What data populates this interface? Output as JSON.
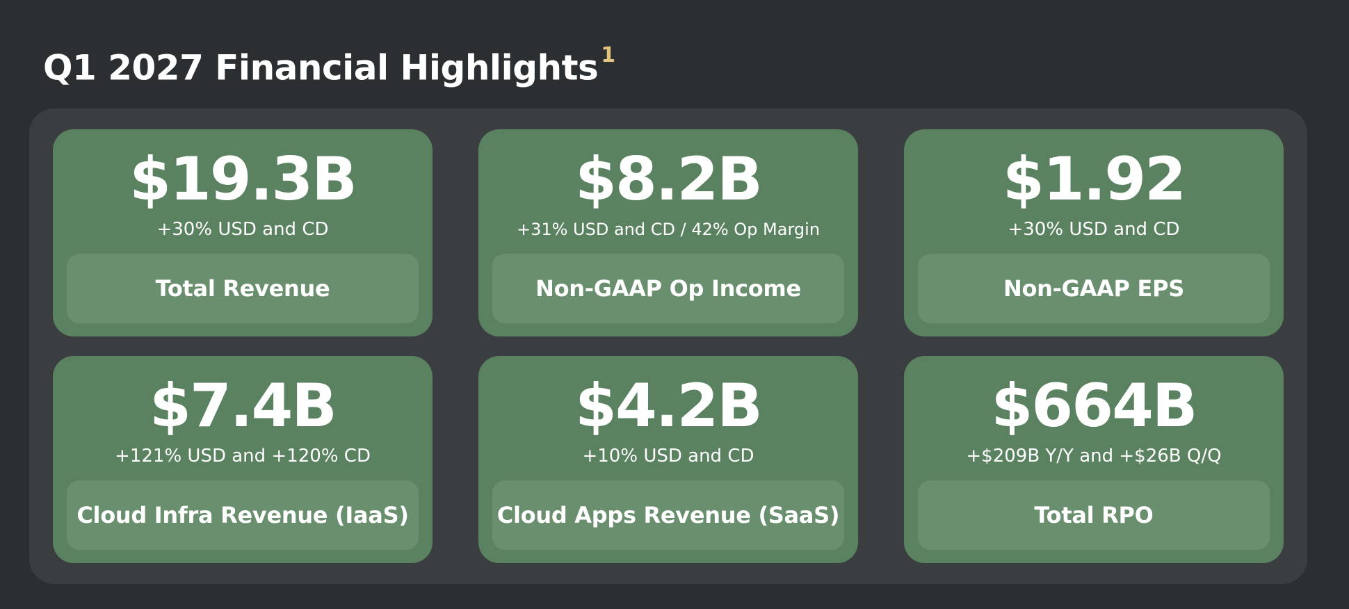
{
  "header": {
    "title": "Q1 2027 Financial Highlights",
    "footnote": "1"
  },
  "colors": {
    "background": "#2c2f31",
    "panel": "#3a3e40",
    "card": "#5a8260",
    "label_box": "#6a8f6f",
    "footnote": "#e3c47f",
    "text": "#ffffff"
  },
  "cards": [
    {
      "value": "$19.3B",
      "sub": "+30% USD and CD",
      "label": "Total Revenue"
    },
    {
      "value": "$8.2B",
      "sub": "+31% USD and CD / 42% Op Margin",
      "label": "Non-GAAP Op Income"
    },
    {
      "value": "$1.92",
      "sub": "+30% USD and CD",
      "label": "Non-GAAP EPS"
    },
    {
      "value": "$7.4B",
      "sub": "+121% USD and +120% CD",
      "label": "Cloud Infra Revenue (IaaS)"
    },
    {
      "value": "$4.2B",
      "sub": "+10% USD and CD",
      "label": "Cloud Apps Revenue (SaaS)"
    },
    {
      "value": "$664B",
      "sub": "+$209B Y/Y and +$26B Q/Q",
      "label": "Total RPO"
    }
  ]
}
